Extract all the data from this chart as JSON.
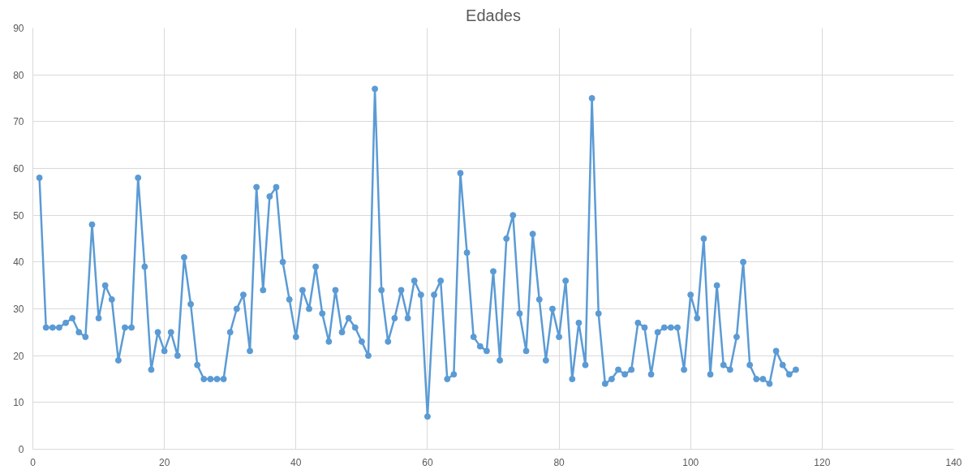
{
  "chart_data": {
    "type": "line",
    "title": "Edades",
    "marker": "circle",
    "line_style": "solid",
    "grid": true,
    "xlim": [
      0,
      140
    ],
    "xticks": [
      0,
      20,
      40,
      60,
      80,
      100,
      120,
      140
    ],
    "ylim": [
      0,
      90
    ],
    "yticks": [
      0,
      10,
      20,
      30,
      40,
      50,
      60,
      70,
      80,
      90
    ],
    "x": [
      1,
      2,
      3,
      4,
      5,
      6,
      7,
      8,
      9,
      10,
      11,
      12,
      13,
      14,
      15,
      16,
      17,
      18,
      19,
      20,
      21,
      22,
      23,
      24,
      25,
      26,
      27,
      28,
      29,
      30,
      31,
      32,
      33,
      34,
      35,
      36,
      37,
      38,
      39,
      40,
      41,
      42,
      43,
      44,
      45,
      46,
      47,
      48,
      49,
      50,
      51,
      52,
      53,
      54,
      55,
      56,
      57,
      58,
      59,
      60,
      61,
      62,
      63,
      64,
      65,
      66,
      67,
      68,
      69,
      70,
      71,
      72,
      73,
      74,
      75,
      76,
      77,
      78,
      79,
      80,
      81,
      82,
      83,
      84,
      85,
      86,
      87,
      88,
      89,
      90,
      91,
      92,
      93,
      94,
      95,
      96,
      97,
      98,
      99,
      100,
      101,
      102,
      103,
      104,
      105,
      106,
      107,
      108,
      109,
      110,
      111,
      112,
      113,
      114,
      115,
      116
    ],
    "series": [
      {
        "color": "#5b9bd5",
        "values": [
          58,
          26,
          26,
          26,
          27,
          28,
          25,
          24,
          48,
          28,
          35,
          32,
          19,
          26,
          26,
          58,
          39,
          17,
          25,
          21,
          25,
          20,
          41,
          31,
          18,
          15,
          15,
          15,
          15,
          25,
          30,
          33,
          21,
          56,
          34,
          54,
          56,
          40,
          32,
          24,
          34,
          30,
          39,
          29,
          23,
          34,
          25,
          28,
          26,
          23,
          20,
          77,
          34,
          23,
          28,
          34,
          28,
          36,
          33,
          7,
          33,
          36,
          15,
          16,
          59,
          42,
          24,
          22,
          21,
          38,
          19,
          45,
          50,
          29,
          21,
          46,
          32,
          19,
          30,
          24,
          36,
          15,
          27,
          18,
          75,
          29,
          14,
          15,
          17,
          16,
          17,
          27,
          26,
          16,
          25,
          26,
          26,
          26,
          17,
          33,
          28,
          45,
          16,
          35,
          18,
          17,
          24,
          40,
          18,
          15,
          15,
          14,
          21,
          18,
          16,
          17
        ]
      }
    ]
  }
}
